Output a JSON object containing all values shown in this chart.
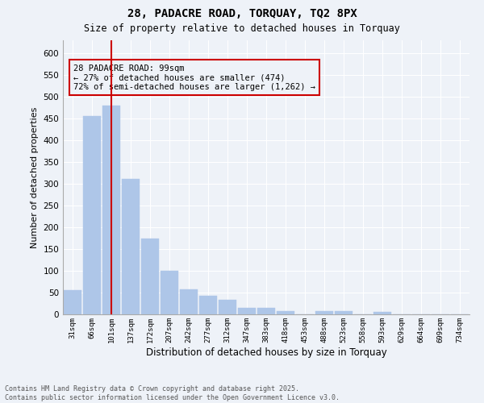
{
  "title": "28, PADACRE ROAD, TORQUAY, TQ2 8PX",
  "subtitle": "Size of property relative to detached houses in Torquay",
  "xlabel": "Distribution of detached houses by size in Torquay",
  "ylabel": "Number of detached properties",
  "categories": [
    "31sqm",
    "66sqm",
    "101sqm",
    "137sqm",
    "172sqm",
    "207sqm",
    "242sqm",
    "277sqm",
    "312sqm",
    "347sqm",
    "383sqm",
    "418sqm",
    "453sqm",
    "488sqm",
    "523sqm",
    "558sqm",
    "593sqm",
    "629sqm",
    "664sqm",
    "699sqm",
    "734sqm"
  ],
  "values": [
    55,
    455,
    480,
    312,
    175,
    100,
    57,
    42,
    33,
    15,
    15,
    8,
    0,
    7,
    7,
    0,
    5,
    0,
    0,
    0,
    0
  ],
  "bar_color": "#aec6e8",
  "marker_bar_index": 2,
  "marker_color": "#cc0000",
  "annotation_text": "28 PADACRE ROAD: 99sqm\n← 27% of detached houses are smaller (474)\n72% of semi-detached houses are larger (1,262) →",
  "annotation_box_color": "#cc0000",
  "ylim": [
    0,
    630
  ],
  "yticks": [
    0,
    50,
    100,
    150,
    200,
    250,
    300,
    350,
    400,
    450,
    500,
    550,
    600
  ],
  "footer_line1": "Contains HM Land Registry data © Crown copyright and database right 2025.",
  "footer_line2": "Contains public sector information licensed under the Open Government Licence v3.0.",
  "bg_color": "#eef2f8",
  "grid_color": "#ffffff"
}
